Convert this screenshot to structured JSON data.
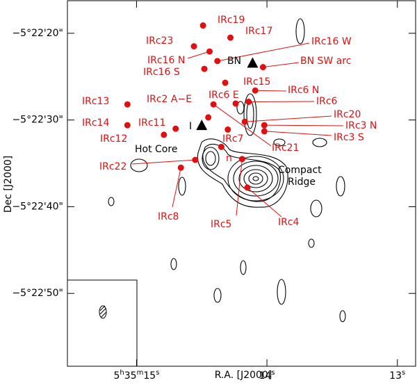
{
  "chart_data": {
    "type": "scatter",
    "xlabel": "R.A. [J2000]",
    "ylabel": "Dec [J2000]",
    "xlim": [
      15.53,
      12.86
    ],
    "ylim": [
      16.24,
      58.4
    ],
    "xticks": [
      {
        "value": 15,
        "label": "5h35m15s"
      },
      {
        "value": 14,
        "label": "14s"
      },
      {
        "value": 13,
        "label": "13s"
      }
    ],
    "yticks": [
      {
        "value": 20,
        "label": "−5°22'20\""
      },
      {
        "value": 30,
        "label": "−5°22'30\""
      },
      {
        "value": 40,
        "label": "−5°22'40\""
      },
      {
        "value": 50,
        "label": "−5°22'50\""
      }
    ],
    "color": "#e01010",
    "sources": [
      {
        "label": "IRc19",
        "x": 14.49,
        "y": 19.1
      },
      {
        "label": "IRc17",
        "x": 14.28,
        "y": 20.5
      },
      {
        "label": "IRc23",
        "x": 14.56,
        "y": 21.5
      },
      {
        "label": "IRc16 W",
        "x": 14.38,
        "y": 23.2
      },
      {
        "label": "IRc16 N",
        "x": 14.44,
        "y": 22.1
      },
      {
        "label": "IRc16 S",
        "x": 14.48,
        "y": 24.1
      },
      {
        "label": "BN SW arc",
        "x": 14.03,
        "y": 23.9
      },
      {
        "label": "IRc15",
        "x": 14.32,
        "y": 25.7
      },
      {
        "label": "IRc6 N",
        "x": 14.09,
        "y": 26.6
      },
      {
        "label": "IRc6 E",
        "x": 14.24,
        "y": 28.1
      },
      {
        "label": "IRc6",
        "x": 14.14,
        "y": 27.9
      },
      {
        "label": "IRc21",
        "x": 14.41,
        "y": 28.2
      },
      {
        "label": "IRc2 A−E",
        "x": 14.45,
        "y": 29.7
      },
      {
        "label": "IRc13",
        "x": 15.07,
        "y": 28.2
      },
      {
        "label": "IRc14",
        "x": 15.07,
        "y": 30.6
      },
      {
        "label": "IRc11",
        "x": 14.7,
        "y": 31.0
      },
      {
        "label": "IRc12",
        "x": 14.79,
        "y": 31.7
      },
      {
        "label": "IRc20",
        "x": 14.17,
        "y": 30.2
      },
      {
        "label": "IRc3 N",
        "x": 14.02,
        "y": 30.6
      },
      {
        "label": "IRc3 S",
        "x": 14.02,
        "y": 31.3
      },
      {
        "label": "IRc7",
        "x": 14.3,
        "y": 31.1
      },
      {
        "label": "n",
        "x": 14.35,
        "y": 33.1
      },
      {
        "label": "IRc22",
        "x": 14.55,
        "y": 34.6
      },
      {
        "label": "IRc8",
        "x": 14.66,
        "y": 35.5
      },
      {
        "label": "IRc5",
        "x": 14.19,
        "y": 34.5
      },
      {
        "label": "IRc4",
        "x": 14.15,
        "y": 37.8
      }
    ],
    "triangles": [
      {
        "label": "BN",
        "x": 14.11,
        "y": 23.4
      },
      {
        "label": "I",
        "x": 14.5,
        "y": 30.6
      }
    ],
    "annotations": [
      "Hot Core",
      "Compact",
      "Ridge"
    ]
  }
}
